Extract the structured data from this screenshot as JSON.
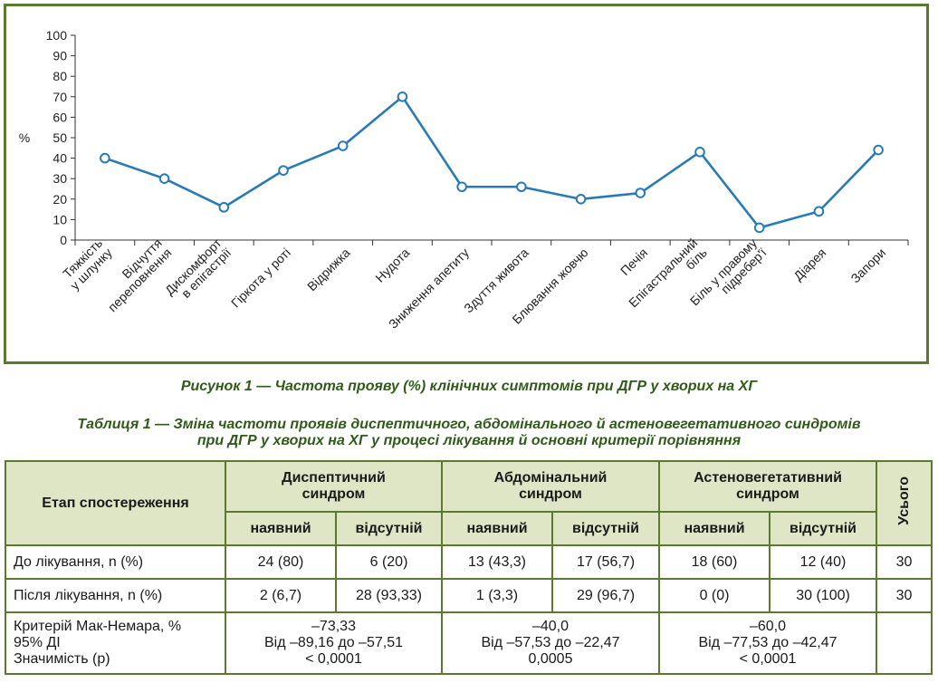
{
  "chart_data": {
    "type": "line",
    "ylabel": "%",
    "ylim": [
      0,
      100
    ],
    "yticks": [
      0,
      10,
      20,
      30,
      40,
      50,
      60,
      70,
      80,
      90,
      100
    ],
    "line_color": "#2a7ab8",
    "categories": [
      [
        "Тяжкість",
        "у шлунку"
      ],
      [
        "Відчуття",
        "переповнення"
      ],
      [
        "Дискомфорт",
        "в епігастрії"
      ],
      [
        "Гіркота у роті"
      ],
      [
        "Відрижка"
      ],
      [
        "Нудота"
      ],
      [
        "Зниження апетиту"
      ],
      [
        "Здуття живота"
      ],
      [
        "Блювання жовчю"
      ],
      [
        "Печія"
      ],
      [
        "Епігастральний",
        "біль"
      ],
      [
        "Біль у правому",
        "підребер'ї"
      ],
      [
        "Діарея"
      ],
      [
        "Запори"
      ]
    ],
    "values": [
      40,
      30,
      16,
      34,
      46,
      70,
      26,
      26,
      20,
      23,
      43,
      6,
      14,
      44
    ]
  },
  "figure_caption": "Рисунок 1 — Частота прояву (%) клінічних симптомів при ДГР у хворих на ХГ",
  "table_caption_line1": "Таблиця 1 — Зміна частоти проявів диспептичного, абдомінального й астеновегетативного синдромів",
  "table_caption_line2": "при ДГР у хворих на ХГ у процесі лікування й основні критерії порівняння",
  "table": {
    "stage_header": "Етап спостереження",
    "groups": [
      [
        "Диспептичний",
        "синдром"
      ],
      [
        "Абдомінальний",
        "синдром"
      ],
      [
        "Астеновегетативний",
        "синдром"
      ]
    ],
    "total_header": "Усього",
    "present": "наявний",
    "absent": "відсутній",
    "rows": [
      {
        "label": "До лікування, n (%)",
        "cells": [
          "24 (80)",
          "6 (20)",
          "13 (43,3)",
          "17 (56,7)",
          "18 (60)",
          "12 (40)"
        ],
        "total": "30"
      },
      {
        "label": "Після лікування, n (%)",
        "cells": [
          "2 (6,7)",
          "28 (93,33)",
          "1 (3,3)",
          "29 (96,7)",
          "0 (0)",
          "30 (100)"
        ],
        "total": "30"
      }
    ],
    "criteria_label": [
      "Критерій Мак-Немара, %",
      "95% ДІ",
      "Значимість (p)"
    ],
    "criteria": [
      [
        "–73,33",
        "Від –89,16 до –57,51",
        "< 0,0001"
      ],
      [
        "–40,0",
        "Від –57,53 до –22,47",
        "0,0005"
      ],
      [
        "–60,0",
        "Від –77,53 до –42,47",
        "< 0,0001"
      ]
    ]
  }
}
